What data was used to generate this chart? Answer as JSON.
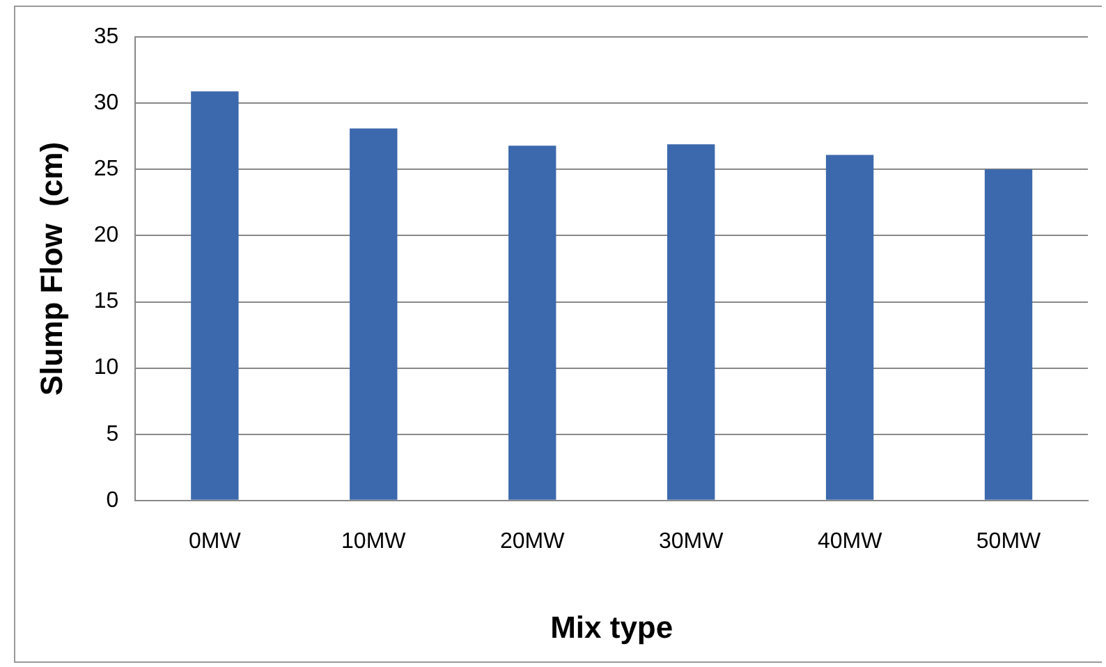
{
  "chart_data": {
    "type": "bar",
    "xlabel": "Mix type",
    "ylabel": "Slump Flow  (cm)",
    "categories": [
      "0MW",
      "10MW",
      "20MW",
      "30MW",
      "40MW",
      "50MW"
    ],
    "values": [
      30.9,
      28.1,
      26.8,
      26.9,
      26.1,
      25.0
    ],
    "color": "#3c69ad",
    "ylim": [
      0,
      35
    ],
    "yticks": [
      0,
      5,
      10,
      15,
      20,
      25,
      30,
      35
    ],
    "grid": "y",
    "legend": false
  }
}
